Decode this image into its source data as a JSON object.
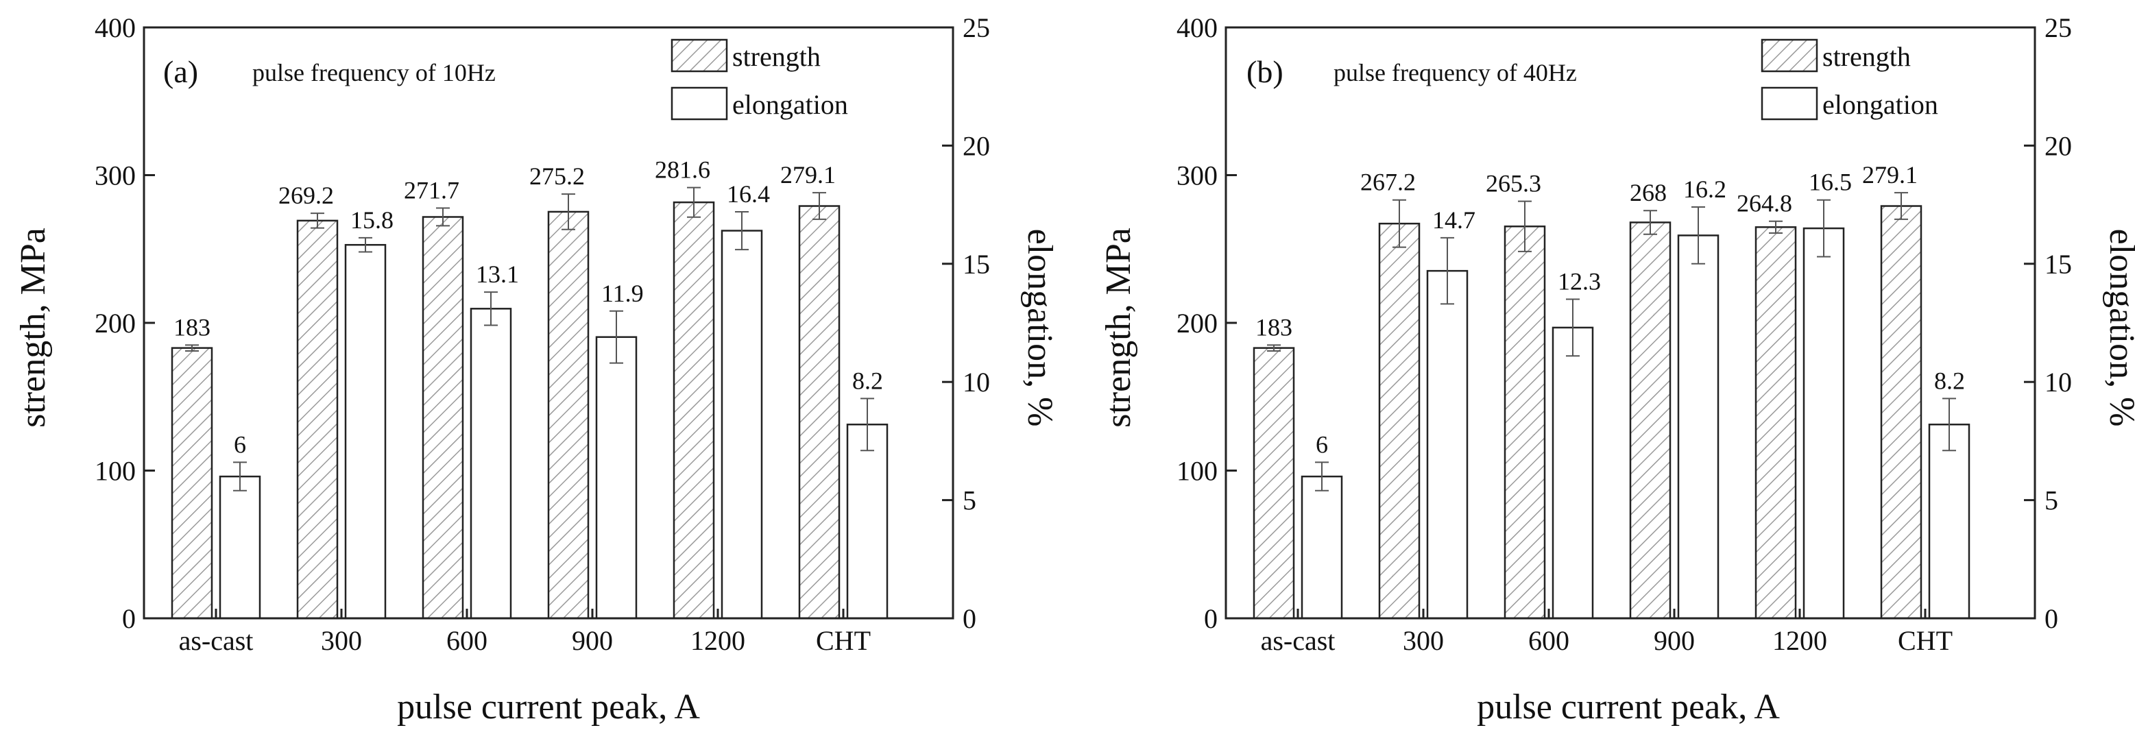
{
  "chart_data": [
    {
      "type": "bar",
      "panel_label": "(a)",
      "subtitle": "pulse frequency of 10Hz",
      "xlabel": "pulse current peak, A",
      "ylabel": "strength, MPa",
      "y2label": "elongation, %",
      "ylim": [
        0,
        400
      ],
      "y2lim": [
        0,
        25
      ],
      "yticks": [
        0,
        100,
        200,
        300,
        400
      ],
      "y2ticks": [
        0,
        5,
        10,
        15,
        20,
        25
      ],
      "categories": [
        "as-cast",
        "300",
        "600",
        "900",
        "1200",
        "CHT"
      ],
      "legend_position": "top-right",
      "series": [
        {
          "name": "strength",
          "axis": "left",
          "pattern": "hatched",
          "values": [
            183,
            269.2,
            271.7,
            275.2,
            281.6,
            279.1
          ],
          "labels": [
            "183",
            "269.2",
            "271.7",
            "275.2",
            "281.6",
            "279.1"
          ],
          "errors": [
            2,
            5,
            6,
            12,
            10,
            9
          ]
        },
        {
          "name": "elongation",
          "axis": "right",
          "pattern": "open",
          "values": [
            6,
            15.8,
            13.1,
            11.9,
            16.4,
            8.2
          ],
          "labels": [
            "6",
            "15.8",
            "13.1",
            "11.9",
            "16.4",
            "8.2"
          ],
          "errors": [
            0.6,
            0.3,
            0.7,
            1.1,
            0.8,
            1.1
          ]
        }
      ]
    },
    {
      "type": "bar",
      "panel_label": "(b)",
      "subtitle": "pulse frequency of 40Hz",
      "xlabel": "pulse current peak, A",
      "ylabel": "strength, MPa",
      "y2label": "elongation, %",
      "ylim": [
        0,
        400
      ],
      "y2lim": [
        0,
        25
      ],
      "yticks": [
        0,
        100,
        200,
        300,
        400
      ],
      "y2ticks": [
        0,
        5,
        10,
        15,
        20,
        25
      ],
      "categories": [
        "as-cast",
        "300",
        "600",
        "900",
        "1200",
        "CHT"
      ],
      "legend_position": "top-right",
      "series": [
        {
          "name": "strength",
          "axis": "left",
          "pattern": "hatched",
          "values": [
            183,
            267.2,
            265.3,
            268,
            264.8,
            279.1
          ],
          "labels": [
            "183",
            "267.2",
            "265.3",
            "268",
            "264.8",
            "279.1"
          ],
          "errors": [
            2,
            16,
            17,
            8,
            4,
            9
          ]
        },
        {
          "name": "elongation",
          "axis": "right",
          "pattern": "open",
          "values": [
            6,
            14.7,
            12.3,
            16.2,
            16.5,
            8.2
          ],
          "labels": [
            "6",
            "14.7",
            "12.3",
            "16.2",
            "16.5",
            "8.2"
          ],
          "errors": [
            0.6,
            1.4,
            1.2,
            1.2,
            1.2,
            1.1
          ]
        }
      ]
    }
  ]
}
